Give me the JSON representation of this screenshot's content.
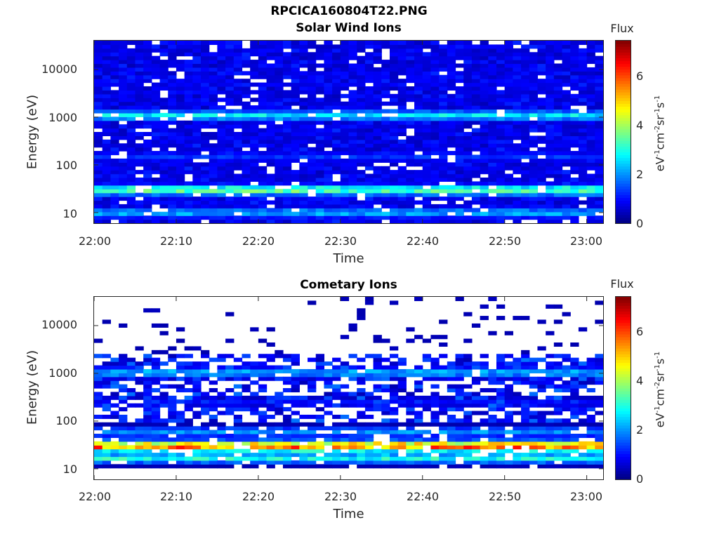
{
  "figure": {
    "title_line1": "RPCICA160804T22.PNG"
  },
  "colorbar": {
    "label": "Flux",
    "unit_parts": [
      "eV",
      "-1",
      "cm",
      "-2",
      "sr",
      "-1",
      "s",
      "-1"
    ],
    "ticks": [
      "0",
      "2",
      "4",
      "6"
    ],
    "range": [
      0,
      7.4
    ],
    "colormap": "jet"
  },
  "chart_data": [
    {
      "type": "heatmap",
      "title": "Solar Wind Ions",
      "xlabel": "Time",
      "ylabel": "Energy (eV)",
      "x_ticks": [
        "22:00",
        "22:10",
        "22:20",
        "22:30",
        "22:40",
        "22:50",
        "23:00"
      ],
      "x_range_minutes": [
        0,
        62
      ],
      "y_scale": "log",
      "y_ticks": [
        "10",
        "100",
        "1000",
        "10000"
      ],
      "y_range": [
        6,
        40000
      ],
      "z_range": [
        0,
        7.4
      ],
      "bands": [
        {
          "energy": 30,
          "flux": 3.5
        },
        {
          "energy": 1100,
          "flux": 2.7
        },
        {
          "energy": 10,
          "flux": 2.2
        },
        {
          "energy": 150,
          "flux": 1.3
        },
        {
          "energy": 5000,
          "flux": 0.8
        }
      ]
    },
    {
      "type": "heatmap",
      "title": "Cometary Ions",
      "xlabel": "Time",
      "ylabel": "Energy (eV)",
      "x_ticks": [
        "22:00",
        "22:10",
        "22:20",
        "22:30",
        "22:40",
        "22:50",
        "23:00"
      ],
      "x_range_minutes": [
        0,
        62
      ],
      "y_scale": "log",
      "y_ticks": [
        "10",
        "100",
        "1000",
        "10000"
      ],
      "y_range": [
        6,
        40000
      ],
      "z_range": [
        0,
        7.4
      ],
      "bands": [
        {
          "energy": 30,
          "flux": 5.8
        },
        {
          "energy": 17,
          "flux": 3.0
        },
        {
          "energy": 1050,
          "flux": 2.2
        },
        {
          "energy": 60,
          "flux": 2.0
        },
        {
          "energy": 250,
          "flux": 1.0
        }
      ]
    }
  ]
}
